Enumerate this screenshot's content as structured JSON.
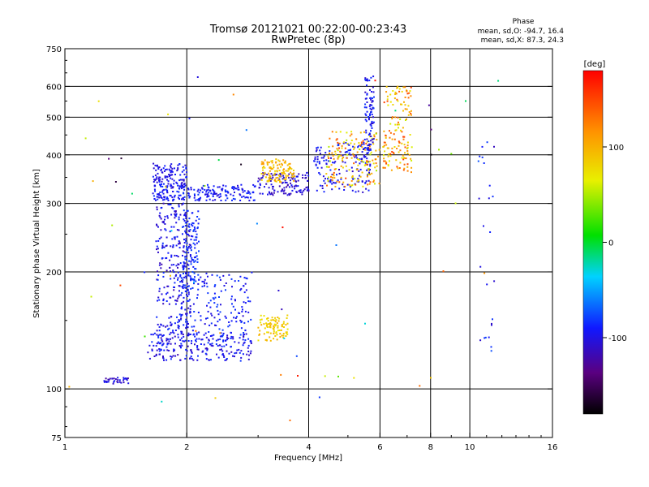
{
  "chart_data": {
    "type": "scatter",
    "title": "Tromsø 20121021 00:22:00-00:23:43",
    "subtitle": "RwPretec (8p)",
    "xlabel": "Frequency [MHz]",
    "ylabel": "Stationary phase Virtual Height [km]",
    "x_scale": "log",
    "y_scale": "log",
    "xlim": [
      1,
      16
    ],
    "ylim": [
      75,
      750
    ],
    "x_ticks": [
      1,
      2,
      4,
      6,
      8,
      10,
      16
    ],
    "y_ticks": [
      75,
      100,
      200,
      300,
      400,
      500,
      600,
      750
    ],
    "grid_x": [
      2,
      4,
      6,
      8,
      10
    ],
    "grid_y": [
      100,
      200,
      300,
      400,
      500,
      600
    ],
    "grid": true,
    "color_by": "phase",
    "colorbar": {
      "label": "[deg]",
      "range": [
        -180,
        180
      ],
      "ticks": [
        -100,
        0,
        100
      ]
    },
    "stats_title": "Phase",
    "stats_line1": "mean, sd,O: -94.7, 16.4",
    "stats_line2": "mean, sd,X:  87.3, 24.3",
    "clusters": [
      {
        "name": "E-layer trace",
        "freq": [
          1.25,
          1.45
        ],
        "height": [
          103,
          107
        ],
        "count": 35,
        "phase": [
          -130,
          -100
        ]
      },
      {
        "name": "Es low rising trace",
        "freq": [
          1.6,
          2.9
        ],
        "height": [
          118,
          140
        ],
        "count": 170,
        "phase": [
          -120,
          -90
        ]
      },
      {
        "name": "F1 cusp vertical",
        "freq": [
          1.68,
          2.05
        ],
        "height": [
          120,
          300
        ],
        "count": 320,
        "phase": [
          -125,
          -90
        ]
      },
      {
        "name": "F1 cusp vertical right",
        "freq": [
          1.95,
          2.15
        ],
        "height": [
          180,
          290
        ],
        "count": 120,
        "phase": [
          -110,
          -85
        ]
      },
      {
        "name": "Diffuse F1 spread",
        "freq": [
          1.9,
          2.9
        ],
        "height": [
          130,
          200
        ],
        "count": 190,
        "phase": [
          -115,
          -85
        ]
      },
      {
        "name": "F2 plateau",
        "freq": [
          1.65,
          3.0
        ],
        "height": [
          305,
          335
        ],
        "count": 220,
        "phase": [
          -115,
          -90
        ]
      },
      {
        "name": "F2 spread upper",
        "freq": [
          1.65,
          2.0
        ],
        "height": [
          330,
          380
        ],
        "count": 110,
        "phase": [
          -120,
          -95
        ]
      },
      {
        "name": "F2 O-mode rising",
        "freq": [
          3.0,
          4.0
        ],
        "height": [
          315,
          360
        ],
        "count": 130,
        "phase": [
          -130,
          -100
        ]
      },
      {
        "name": "F2 X-mode",
        "freq": [
          3.05,
          3.7
        ],
        "height": [
          340,
          390
        ],
        "count": 110,
        "phase": [
          70,
          110
        ]
      },
      {
        "name": "Es X-mode patch",
        "freq": [
          3.0,
          3.55
        ],
        "height": [
          133,
          155
        ],
        "count": 90,
        "phase": [
          60,
          100
        ]
      },
      {
        "name": "F2 O-mode cusp",
        "freq": [
          4.1,
          5.7
        ],
        "height": [
          320,
          430
        ],
        "count": 160,
        "phase": [
          -120,
          -90
        ]
      },
      {
        "name": "F2 X-mode cusp",
        "freq": [
          4.4,
          6.0
        ],
        "height": [
          330,
          460
        ],
        "count": 160,
        "phase": [
          40,
          150
        ]
      },
      {
        "name": "O-mode near foF2",
        "freq": [
          5.5,
          5.8
        ],
        "height": [
          400,
          640
        ],
        "count": 90,
        "phase": [
          -120,
          -90
        ]
      },
      {
        "name": "X-mode near fxF2",
        "freq": [
          6.1,
          7.2
        ],
        "height": [
          360,
          600
        ],
        "count": 150,
        "phase": [
          50,
          150
        ]
      },
      {
        "name": "Scattered F2 oblique",
        "freq": [
          10.5,
          11.5
        ],
        "height": [
          120,
          480
        ],
        "count": 25,
        "phase": [
          -120,
          -80
        ]
      },
      {
        "name": "Random noise",
        "freq": [
          1.0,
          16.0
        ],
        "height": [
          80,
          700
        ],
        "count": 60,
        "phase": [
          -180,
          180
        ]
      }
    ]
  }
}
